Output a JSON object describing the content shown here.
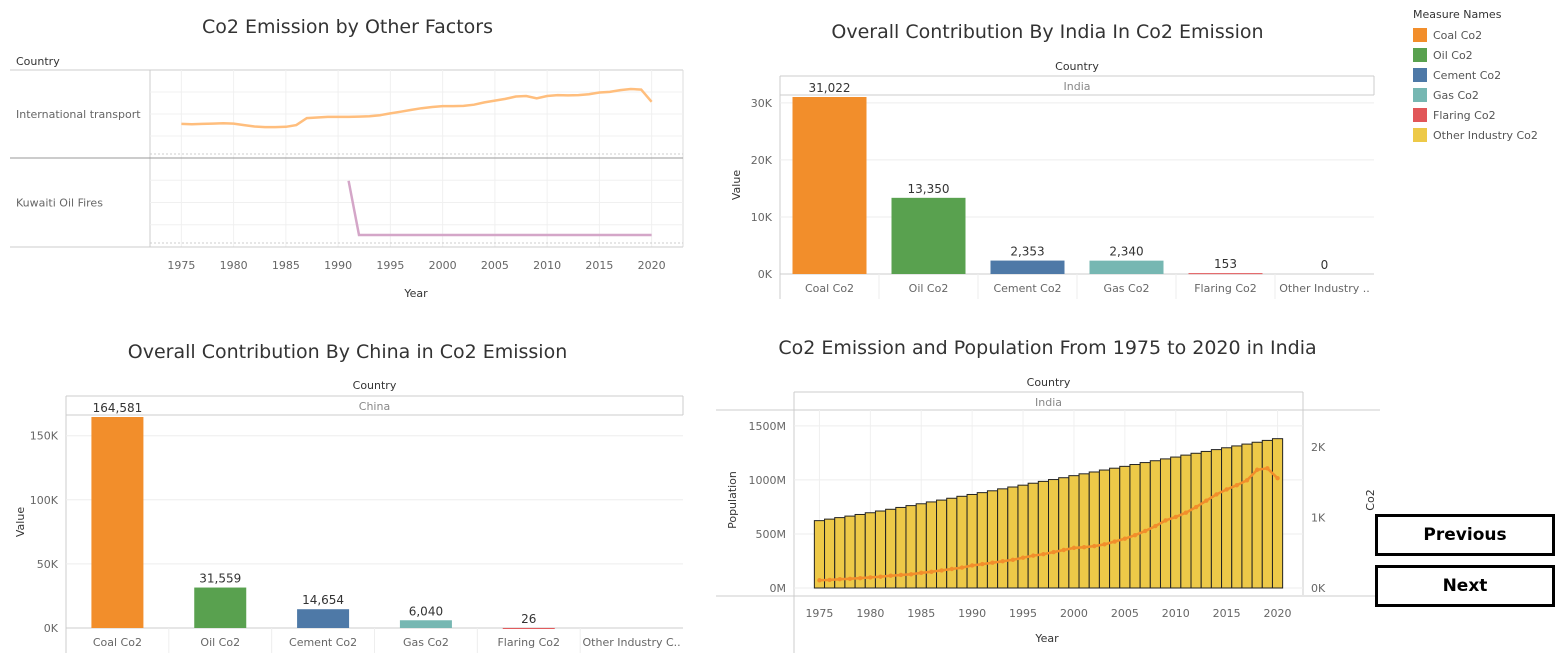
{
  "colors": {
    "coal": "#f28e2b",
    "oil": "#59a14f",
    "cement": "#4e79a7",
    "gas": "#76b7b2",
    "flaring": "#e15759",
    "other": "#edc948",
    "transport_line": "#ffbe7d",
    "kuwait_line": "#d4a6c8",
    "pop_bar": "#edc948",
    "co2_line": "#f28e2b"
  },
  "legend": {
    "title": "Measure Names",
    "items": [
      {
        "label": "Coal Co2",
        "color": "#f28e2b"
      },
      {
        "label": "Oil Co2",
        "color": "#59a14f"
      },
      {
        "label": "Cement Co2",
        "color": "#4e79a7"
      },
      {
        "label": "Gas Co2",
        "color": "#76b7b2"
      },
      {
        "label": "Flaring Co2",
        "color": "#e15759"
      },
      {
        "label": "Other Industry Co2",
        "color": "#edc948"
      }
    ]
  },
  "nav": {
    "previous": "Previous",
    "next": "Next"
  },
  "chart_data": [
    {
      "type": "line",
      "title": "Co2 Emission by Other Factors",
      "row_header": "Country",
      "xlabel": "Year",
      "x_ticks": [
        1975,
        1980,
        1985,
        1990,
        1995,
        2000,
        2005,
        2010,
        2015,
        2020
      ],
      "xlim": [
        1972,
        2023
      ],
      "rows": [
        {
          "name": "International transport",
          "ylim": [
            300,
            1400
          ],
          "x": [
            1975,
            1976,
            1977,
            1978,
            1979,
            1980,
            1981,
            1982,
            1983,
            1984,
            1985,
            1986,
            1987,
            1988,
            1989,
            1990,
            1991,
            1992,
            1993,
            1994,
            1995,
            1996,
            1997,
            1998,
            1999,
            2000,
            2001,
            2002,
            2003,
            2004,
            2005,
            2006,
            2007,
            2008,
            2009,
            2010,
            2011,
            2012,
            2013,
            2014,
            2015,
            2016,
            2017,
            2018,
            2019,
            2020
          ],
          "values": [
            680,
            675,
            680,
            685,
            690,
            685,
            660,
            635,
            625,
            625,
            630,
            660,
            780,
            790,
            800,
            800,
            800,
            805,
            810,
            830,
            860,
            890,
            920,
            950,
            970,
            985,
            985,
            990,
            1010,
            1050,
            1080,
            1110,
            1150,
            1160,
            1120,
            1160,
            1175,
            1170,
            1175,
            1190,
            1220,
            1230,
            1260,
            1280,
            1270,
            1060
          ]
        },
        {
          "name": "Kuwaiti Oil Fires",
          "ylim": [
            0,
            150
          ],
          "x": [
            1991,
            1992,
            1993,
            1994,
            1995,
            1996,
            1997,
            1998,
            1999,
            2000,
            2001,
            2002,
            2003,
            2004,
            2005,
            2006,
            2007,
            2008,
            2009,
            2010,
            2011,
            2012,
            2013,
            2014,
            2015,
            2016,
            2017,
            2018,
            2019,
            2020
          ],
          "values": [
            125,
            0,
            0,
            0,
            0,
            0,
            0,
            0,
            0,
            0,
            0,
            0,
            0,
            0,
            0,
            0,
            0,
            0,
            0,
            0,
            0,
            0,
            0,
            0,
            0,
            0,
            0,
            0,
            0,
            0
          ]
        }
      ]
    },
    {
      "type": "bar",
      "title": "Overall Contribution By India In Co2 Emission",
      "header": "Country",
      "subheader": "India",
      "ylabel": "Value",
      "ylim": [
        0,
        31022
      ],
      "y_ticks": [
        {
          "v": 0,
          "label": "0K"
        },
        {
          "v": 10000,
          "label": "10K"
        },
        {
          "v": 20000,
          "label": "20K"
        },
        {
          "v": 30000,
          "label": "30K"
        }
      ],
      "categories": [
        "Coal Co2",
        "Oil Co2",
        "Cement Co2",
        "Gas Co2",
        "Flaring Co2",
        "Other Industry .."
      ],
      "values": [
        31022,
        13350,
        2353,
        2340,
        153,
        0
      ],
      "labels": [
        "31,022",
        "13,350",
        "2,353",
        "2,340",
        "153",
        "0"
      ]
    },
    {
      "type": "bar",
      "title": "Overall Contribution By China in Co2 Emission",
      "header": "Country",
      "subheader": "China",
      "ylabel": "Value",
      "ylim": [
        0,
        164581
      ],
      "y_ticks": [
        {
          "v": 0,
          "label": "0K"
        },
        {
          "v": 50000,
          "label": "50K"
        },
        {
          "v": 100000,
          "label": "100K"
        },
        {
          "v": 150000,
          "label": "150K"
        }
      ],
      "categories": [
        "Coal Co2",
        "Oil Co2",
        "Cement Co2",
        "Gas Co2",
        "Flaring Co2",
        "Other Industry C.."
      ],
      "values": [
        164581,
        31559,
        14654,
        6040,
        26,
        0
      ],
      "labels": [
        "164,581",
        "31,559",
        "14,654",
        "6,040",
        "26",
        ""
      ]
    },
    {
      "type": "bar+line",
      "title": "Co2 Emission and Population From 1975 to 2020 in India",
      "header": "Country",
      "subheader": "India",
      "xlabel": "Year",
      "ylabel": "Population",
      "y2label": "Co2",
      "x_ticks": [
        1975,
        1980,
        1985,
        1990,
        1995,
        2000,
        2005,
        2010,
        2015,
        2020
      ],
      "y_ticks": [
        {
          "v": 0,
          "label": "0M"
        },
        {
          "v": 500,
          "label": "500M"
        },
        {
          "v": 1000,
          "label": "1000M"
        },
        {
          "v": 1500,
          "label": "1500M"
        }
      ],
      "y2_ticks": [
        {
          "v": 0,
          "label": "0K"
        },
        {
          "v": 1000,
          "label": "1K"
        },
        {
          "v": 2000,
          "label": "2K"
        }
      ],
      "ylim": [
        0,
        1500
      ],
      "y2lim": [
        0,
        2000
      ],
      "years": [
        1975,
        1976,
        1977,
        1978,
        1979,
        1980,
        1981,
        1982,
        1983,
        1984,
        1985,
        1986,
        1987,
        1988,
        1989,
        1990,
        1991,
        1992,
        1993,
        1994,
        1995,
        1996,
        1997,
        1998,
        1999,
        2000,
        2001,
        2002,
        2003,
        2004,
        2005,
        2006,
        2007,
        2008,
        2009,
        2010,
        2011,
        2012,
        2013,
        2014,
        2015,
        2016,
        2017,
        2018,
        2019,
        2020
      ],
      "population": [
        623,
        637,
        651,
        665,
        680,
        696,
        712,
        728,
        745,
        762,
        779,
        796,
        813,
        830,
        848,
        865,
        882,
        899,
        917,
        934,
        951,
        969,
        986,
        1003,
        1020,
        1039,
        1056,
        1073,
        1091,
        1108,
        1125,
        1142,
        1160,
        1177,
        1194,
        1211,
        1229,
        1246,
        1263,
        1280,
        1297,
        1314,
        1331,
        1348,
        1365,
        1381
      ],
      "co2": [
        110,
        115,
        125,
        130,
        140,
        150,
        160,
        175,
        185,
        195,
        215,
        230,
        250,
        270,
        290,
        320,
        340,
        360,
        380,
        400,
        430,
        460,
        480,
        510,
        540,
        570,
        580,
        595,
        620,
        660,
        700,
        750,
        810,
        880,
        960,
        1010,
        1070,
        1150,
        1240,
        1330,
        1400,
        1460,
        1530,
        1680,
        1700,
        1560
      ]
    }
  ]
}
